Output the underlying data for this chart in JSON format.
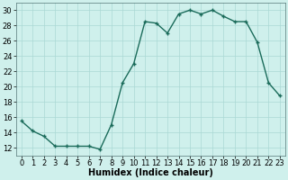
{
  "x": [
    0,
    1,
    2,
    3,
    4,
    5,
    6,
    7,
    8,
    9,
    10,
    11,
    12,
    13,
    14,
    15,
    16,
    17,
    18,
    19,
    20,
    21,
    22,
    23
  ],
  "y": [
    15.5,
    14.2,
    13.5,
    12.2,
    12.2,
    12.2,
    12.2,
    11.8,
    15.0,
    20.5,
    23.0,
    28.5,
    28.3,
    27.0,
    29.5,
    30.0,
    29.5,
    30.0,
    29.2,
    28.5,
    28.5,
    25.8,
    20.5,
    18.8
  ],
  "line_color": "#1a6b5a",
  "marker": "+",
  "bg_color": "#cff0ec",
  "grid_color": "#aad8d4",
  "xlabel": "Humidex (Indice chaleur)",
  "xlim": [
    -0.5,
    23.5
  ],
  "ylim": [
    11,
    31
  ],
  "xticks": [
    0,
    1,
    2,
    3,
    4,
    5,
    6,
    7,
    8,
    9,
    10,
    11,
    12,
    13,
    14,
    15,
    16,
    17,
    18,
    19,
    20,
    21,
    22,
    23
  ],
  "yticks": [
    12,
    14,
    16,
    18,
    20,
    22,
    24,
    26,
    28,
    30
  ],
  "xlabel_fontsize": 7,
  "tick_fontsize": 6,
  "linewidth": 1.0,
  "markersize": 3.5,
  "markeredgewidth": 1.0
}
